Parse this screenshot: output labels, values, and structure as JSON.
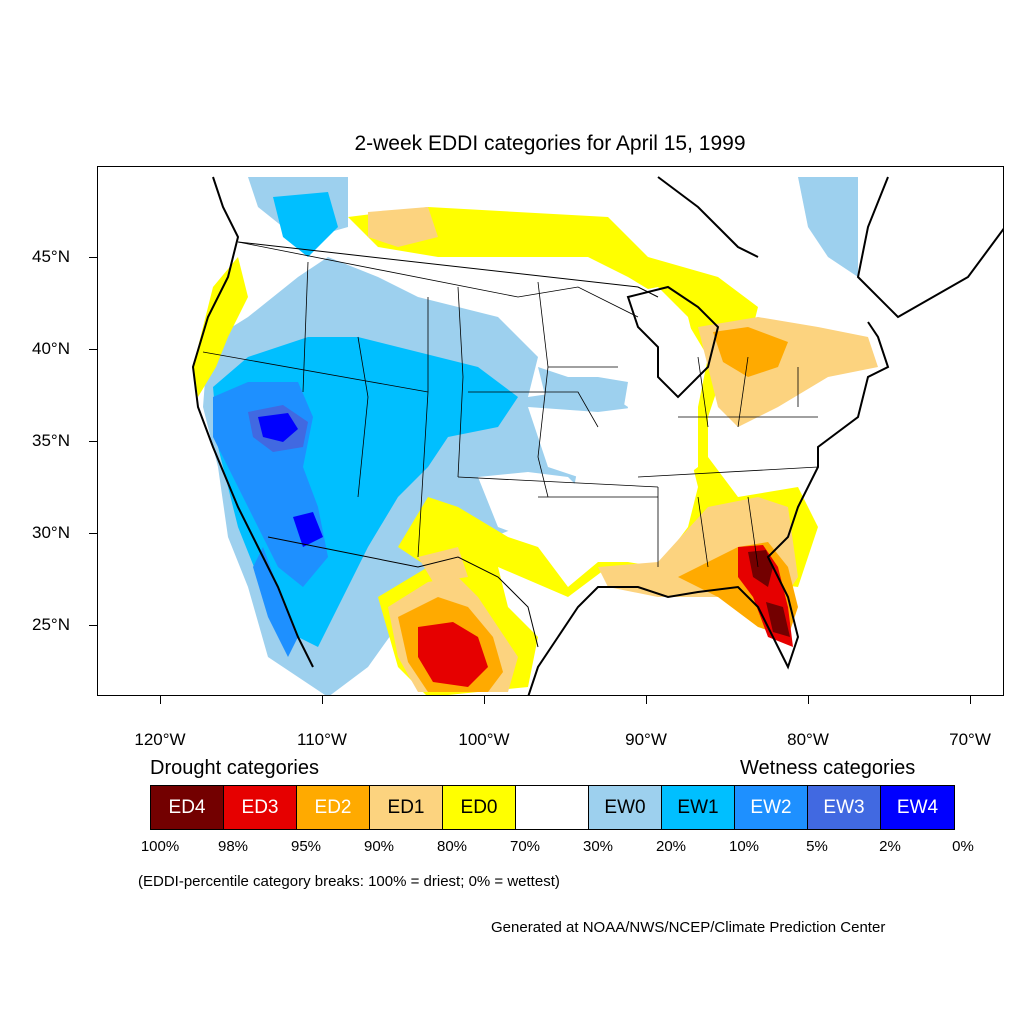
{
  "title": "2-week EDDI categories for April 15, 1999",
  "map": {
    "lat_ticks": [
      "45°N",
      "40°N",
      "35°N",
      "30°N",
      "25°N"
    ],
    "lon_ticks": [
      "120°W",
      "110°W",
      "100°W",
      "90°W",
      "80°W",
      "70°W"
    ]
  },
  "legend": {
    "drought_heading": "Drought categories",
    "wetness_heading": "Wetness categories",
    "categories": [
      {
        "label": "ED4",
        "color": "#730000",
        "text_color": "#ffffff"
      },
      {
        "label": "ED3",
        "color": "#e60000",
        "text_color": "#ffffff"
      },
      {
        "label": "ED2",
        "color": "#ffaa00",
        "text_color": "#ffffff"
      },
      {
        "label": "ED1",
        "color": "#fcd37f",
        "text_color": "#000000"
      },
      {
        "label": "ED0",
        "color": "#ffff00",
        "text_color": "#000000"
      },
      {
        "label": "",
        "color": "#ffffff",
        "text_color": "#000000"
      },
      {
        "label": "EW0",
        "color": "#9dd0ee",
        "text_color": "#000000"
      },
      {
        "label": "EW1",
        "color": "#00bfff",
        "text_color": "#000000"
      },
      {
        "label": "EW2",
        "color": "#1e90ff",
        "text_color": "#ffffff"
      },
      {
        "label": "EW3",
        "color": "#4169e1",
        "text_color": "#ffffff"
      },
      {
        "label": "EW4",
        "color": "#0000ff",
        "text_color": "#ffffff"
      }
    ],
    "breaks": [
      "100%",
      "98%",
      "95%",
      "90%",
      "80%",
      "70%",
      "30%",
      "20%",
      "10%",
      "5%",
      "2%",
      "0%"
    ]
  },
  "note": "(EDDI-percentile category breaks: 100% = driest; 0% = wettest)",
  "credit": "Generated at NOAA/NWS/NCEP/Climate Prediction Center"
}
